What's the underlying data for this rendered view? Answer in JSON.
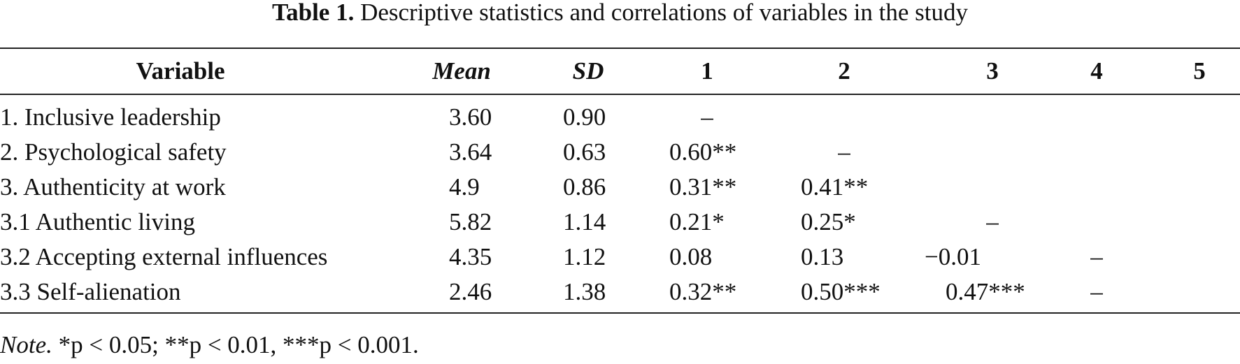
{
  "caption": {
    "label": "Table 1.",
    "text": "Descriptive statistics and correlations of variables in the study"
  },
  "table": {
    "headers": [
      "Variable",
      "Mean",
      "SD",
      "1",
      "2",
      "3",
      "4",
      "5"
    ],
    "rows": [
      [
        "1. Inclusive leadership",
        "3.60",
        "0.90",
        "–",
        "",
        "",
        "",
        ""
      ],
      [
        "2. Psychological safety",
        "3.64",
        "0.63",
        "0.60**",
        "–",
        "",
        "",
        ""
      ],
      [
        "3. Authenticity at work",
        "4.9",
        "0.86",
        "0.31**",
        "0.41**",
        "",
        "",
        ""
      ],
      [
        "3.1 Authentic living",
        "5.82",
        "1.14",
        "0.21*",
        "0.25*",
        "–",
        "",
        ""
      ],
      [
        "3.2 Accepting external influences",
        "4.35",
        "1.12",
        "0.08",
        "0.13",
        "−0.01",
        "–",
        ""
      ],
      [
        "3.3 Self-alienation",
        "2.46",
        "1.38",
        "0.32**",
        "0.50***",
        "0.47***",
        "–",
        ""
      ]
    ]
  },
  "note": {
    "label": "Note.",
    "text": " *p < 0.05; **p < 0.01, ***p < 0.001."
  }
}
